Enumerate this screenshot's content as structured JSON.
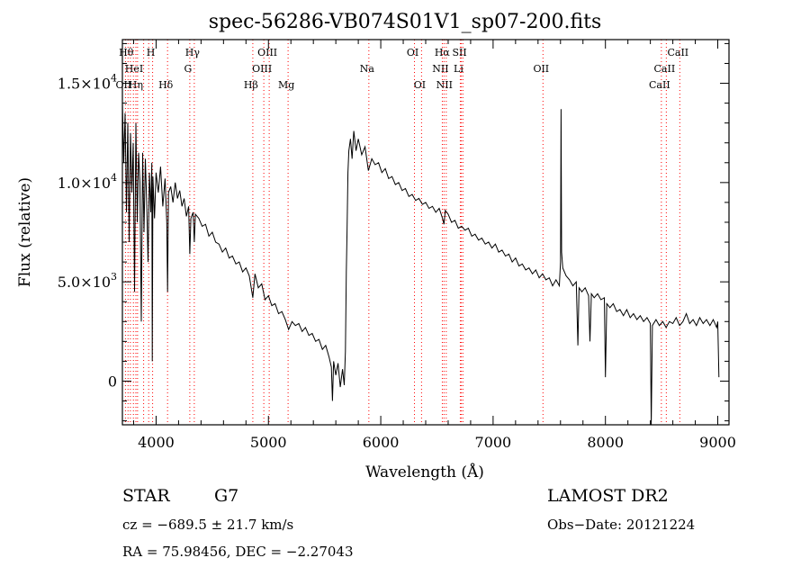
{
  "title": "spec-56286-VB074S01V1_sp07-200.fits",
  "info": {
    "object_class": "STAR",
    "subclass": "G7",
    "survey": "LAMOST DR2",
    "redshift_line": "cz = −689.5 ± 21.7 km/s",
    "obsdate_line": "Obs−Date: 20121224",
    "coords_line": "RA =  75.98456, DEC =  −2.27043"
  },
  "colors": {
    "spectrum": "#000000",
    "line_marker": "#ff0000",
    "frame": "#000000",
    "background": "#ffffff"
  },
  "chart_data": {
    "type": "line",
    "title": "spec-56286-VB074S01V1_sp07-200.fits",
    "xlabel": "Wavelength (Å)",
    "ylabel": "Flux (relative)",
    "xlim": [
      3700,
      9100
    ],
    "ylim": [
      -2200,
      17200
    ],
    "grid": false,
    "legend": "none",
    "x_ticks": [
      {
        "value": 4000,
        "label": "4000"
      },
      {
        "value": 5000,
        "label": "5000"
      },
      {
        "value": 6000,
        "label": "6000"
      },
      {
        "value": 7000,
        "label": "7000"
      },
      {
        "value": 8000,
        "label": "8000"
      },
      {
        "value": 9000,
        "label": "9000"
      }
    ],
    "y_ticks": [
      {
        "value": 0,
        "label": "0",
        "exp": ""
      },
      {
        "value": 5000,
        "label": "5.0×10",
        "exp": "3"
      },
      {
        "value": 10000,
        "label": "1.0×10",
        "exp": "4"
      },
      {
        "value": 15000,
        "label": "1.5×10",
        "exp": "4"
      }
    ],
    "series": [
      {
        "points": [
          [
            3700,
            14000
          ],
          [
            3712,
            11000
          ],
          [
            3724,
            13500
          ],
          [
            3736,
            8500
          ],
          [
            3748,
            13000
          ],
          [
            3760,
            7000
          ],
          [
            3772,
            12500
          ],
          [
            3784,
            9500
          ],
          [
            3796,
            12000
          ],
          [
            3808,
            4500
          ],
          [
            3820,
            13000
          ],
          [
            3832,
            8000
          ],
          [
            3844,
            11500
          ],
          [
            3856,
            10000
          ],
          [
            3868,
            3000
          ],
          [
            3880,
            11500
          ],
          [
            3892,
            7500
          ],
          [
            3904,
            11200
          ],
          [
            3916,
            9000
          ],
          [
            3928,
            6000
          ],
          [
            3940,
            10500
          ],
          [
            3952,
            8500
          ],
          [
            3962,
            11000
          ],
          [
            3966,
            1000
          ],
          [
            3972,
            10300
          ],
          [
            3986,
            8200
          ],
          [
            4000,
            10500
          ],
          [
            4020,
            9500
          ],
          [
            4040,
            10800
          ],
          [
            4060,
            8800
          ],
          [
            4080,
            10200
          ],
          [
            4095,
            8000
          ],
          [
            4102,
            4500
          ],
          [
            4110,
            9500
          ],
          [
            4130,
            9800
          ],
          [
            4150,
            9000
          ],
          [
            4170,
            10000
          ],
          [
            4190,
            9200
          ],
          [
            4210,
            9600
          ],
          [
            4230,
            8800
          ],
          [
            4250,
            9200
          ],
          [
            4270,
            8300
          ],
          [
            4290,
            8800
          ],
          [
            4300,
            6400
          ],
          [
            4310,
            8200
          ],
          [
            4330,
            8500
          ],
          [
            4340,
            7000
          ],
          [
            4350,
            8400
          ],
          [
            4380,
            8200
          ],
          [
            4410,
            7800
          ],
          [
            4440,
            7900
          ],
          [
            4470,
            7300
          ],
          [
            4500,
            7500
          ],
          [
            4530,
            7000
          ],
          [
            4560,
            6900
          ],
          [
            4590,
            6500
          ],
          [
            4620,
            6700
          ],
          [
            4650,
            6200
          ],
          [
            4680,
            6300
          ],
          [
            4710,
            5900
          ],
          [
            4740,
            6000
          ],
          [
            4770,
            5500
          ],
          [
            4800,
            5700
          ],
          [
            4830,
            5300
          ],
          [
            4861,
            4200
          ],
          [
            4880,
            5400
          ],
          [
            4910,
            4700
          ],
          [
            4940,
            4900
          ],
          [
            4970,
            4100
          ],
          [
            5000,
            4300
          ],
          [
            5030,
            3800
          ],
          [
            5060,
            3900
          ],
          [
            5090,
            3400
          ],
          [
            5120,
            3500
          ],
          [
            5150,
            3100
          ],
          [
            5180,
            2600
          ],
          [
            5210,
            3000
          ],
          [
            5240,
            2800
          ],
          [
            5270,
            2900
          ],
          [
            5300,
            2500
          ],
          [
            5330,
            2700
          ],
          [
            5360,
            2300
          ],
          [
            5390,
            2400
          ],
          [
            5420,
            2000
          ],
          [
            5450,
            2100
          ],
          [
            5480,
            1600
          ],
          [
            5510,
            1800
          ],
          [
            5540,
            1200
          ],
          [
            5560,
            700
          ],
          [
            5570,
            -1000
          ],
          [
            5580,
            1000
          ],
          [
            5600,
            300
          ],
          [
            5620,
            900
          ],
          [
            5640,
            -300
          ],
          [
            5660,
            600
          ],
          [
            5675,
            -200
          ],
          [
            5685,
            1500
          ],
          [
            5693,
            5500
          ],
          [
            5700,
            7500
          ],
          [
            5708,
            10500
          ],
          [
            5716,
            11600
          ],
          [
            5730,
            12200
          ],
          [
            5745,
            11200
          ],
          [
            5760,
            12600
          ],
          [
            5780,
            11600
          ],
          [
            5800,
            12200
          ],
          [
            5830,
            11400
          ],
          [
            5860,
            11800
          ],
          [
            5890,
            10600
          ],
          [
            5920,
            11200
          ],
          [
            5950,
            10900
          ],
          [
            5980,
            11000
          ],
          [
            6010,
            10500
          ],
          [
            6040,
            10700
          ],
          [
            6070,
            10200
          ],
          [
            6100,
            10300
          ],
          [
            6130,
            9900
          ],
          [
            6160,
            10000
          ],
          [
            6190,
            9600
          ],
          [
            6220,
            9700
          ],
          [
            6250,
            9300
          ],
          [
            6280,
            9400
          ],
          [
            6310,
            9100
          ],
          [
            6340,
            9200
          ],
          [
            6370,
            8900
          ],
          [
            6400,
            9000
          ],
          [
            6430,
            8700
          ],
          [
            6460,
            8800
          ],
          [
            6490,
            8500
          ],
          [
            6520,
            8700
          ],
          [
            6550,
            8200
          ],
          [
            6563,
            7900
          ],
          [
            6575,
            8600
          ],
          [
            6600,
            8400
          ],
          [
            6630,
            8000
          ],
          [
            6660,
            8100
          ],
          [
            6690,
            7700
          ],
          [
            6720,
            7800
          ],
          [
            6750,
            7600
          ],
          [
            6780,
            7700
          ],
          [
            6810,
            7300
          ],
          [
            6840,
            7400
          ],
          [
            6870,
            7100
          ],
          [
            6900,
            7200
          ],
          [
            6930,
            6900
          ],
          [
            6960,
            7000
          ],
          [
            6990,
            6700
          ],
          [
            7020,
            6900
          ],
          [
            7050,
            6500
          ],
          [
            7080,
            6600
          ],
          [
            7110,
            6300
          ],
          [
            7140,
            6400
          ],
          [
            7170,
            6000
          ],
          [
            7200,
            6200
          ],
          [
            7230,
            5800
          ],
          [
            7260,
            5900
          ],
          [
            7290,
            5600
          ],
          [
            7320,
            5700
          ],
          [
            7350,
            5400
          ],
          [
            7380,
            5600
          ],
          [
            7410,
            5200
          ],
          [
            7440,
            5400
          ],
          [
            7470,
            5100
          ],
          [
            7500,
            5200
          ],
          [
            7530,
            4800
          ],
          [
            7560,
            5100
          ],
          [
            7590,
            4800
          ],
          [
            7600,
            6000
          ],
          [
            7605,
            13700
          ],
          [
            7610,
            6500
          ],
          [
            7620,
            5700
          ],
          [
            7650,
            5300
          ],
          [
            7680,
            5100
          ],
          [
            7710,
            4800
          ],
          [
            7740,
            5000
          ],
          [
            7755,
            1800
          ],
          [
            7765,
            4700
          ],
          [
            7790,
            4500
          ],
          [
            7820,
            4700
          ],
          [
            7850,
            4300
          ],
          [
            7862,
            2000
          ],
          [
            7875,
            4400
          ],
          [
            7900,
            4200
          ],
          [
            7930,
            4400
          ],
          [
            7960,
            4100
          ],
          [
            7990,
            4200
          ],
          [
            8000,
            200
          ],
          [
            8012,
            3900
          ],
          [
            8040,
            3700
          ],
          [
            8070,
            3900
          ],
          [
            8100,
            3500
          ],
          [
            8130,
            3600
          ],
          [
            8160,
            3300
          ],
          [
            8190,
            3600
          ],
          [
            8220,
            3200
          ],
          [
            8250,
            3400
          ],
          [
            8280,
            3100
          ],
          [
            8310,
            3300
          ],
          [
            8340,
            3000
          ],
          [
            8370,
            3200
          ],
          [
            8400,
            2900
          ],
          [
            8408,
            -2200
          ],
          [
            8418,
            2800
          ],
          [
            8450,
            3100
          ],
          [
            8480,
            2800
          ],
          [
            8510,
            3000
          ],
          [
            8540,
            2700
          ],
          [
            8570,
            3000
          ],
          [
            8600,
            2900
          ],
          [
            8630,
            3200
          ],
          [
            8660,
            2800
          ],
          [
            8690,
            3000
          ],
          [
            8720,
            3400
          ],
          [
            8750,
            2900
          ],
          [
            8780,
            3100
          ],
          [
            8810,
            2800
          ],
          [
            8840,
            3200
          ],
          [
            8870,
            2900
          ],
          [
            8900,
            3100
          ],
          [
            8930,
            2800
          ],
          [
            8960,
            3100
          ],
          [
            8990,
            2700
          ],
          [
            9000,
            3000
          ],
          [
            9010,
            200
          ]
        ]
      }
    ],
    "line_markers": [
      {
        "wavelength": 3750,
        "label": "Hθ",
        "row": 0
      },
      {
        "wavelength": 3771,
        "label": "",
        "row": 0
      },
      {
        "wavelength": 3798,
        "label": "",
        "row": 0
      },
      {
        "wavelength": 3820,
        "label": "HeI",
        "row": 1
      },
      {
        "wavelength": 3835,
        "label": "Hη",
        "row": 2
      },
      {
        "wavelength": 3727,
        "label": "OII",
        "row": 2
      },
      {
        "wavelength": 3889,
        "label": "",
        "row": 0
      },
      {
        "wavelength": 3934,
        "label": "",
        "row": 0
      },
      {
        "wavelength": 3969,
        "label": "H",
        "row": 0
      },
      {
        "wavelength": 4102,
        "label": "Hδ",
        "row": 2
      },
      {
        "wavelength": 4300,
        "label": "G",
        "row": 1
      },
      {
        "wavelength": 4340,
        "label": "Hγ",
        "row": 0
      },
      {
        "wavelength": 4861,
        "label": "Hβ",
        "row": 2
      },
      {
        "wavelength": 4959,
        "label": "OIII",
        "row": 1
      },
      {
        "wavelength": 5007,
        "label": "OIII",
        "row": 0
      },
      {
        "wavelength": 5175,
        "label": "Mg",
        "row": 2
      },
      {
        "wavelength": 5894,
        "label": "Na",
        "row": 1
      },
      {
        "wavelength": 6300,
        "label": "OI",
        "row": 0
      },
      {
        "wavelength": 6363,
        "label": "OI",
        "row": 2
      },
      {
        "wavelength": 6548,
        "label": "NII",
        "row": 1
      },
      {
        "wavelength": 6563,
        "label": "Hα",
        "row": 0
      },
      {
        "wavelength": 6583,
        "label": "NII",
        "row": 2
      },
      {
        "wavelength": 6708,
        "label": "Li",
        "row": 1
      },
      {
        "wavelength": 6717,
        "label": "SII",
        "row": 0
      },
      {
        "wavelength": 6731,
        "label": "",
        "row": 0
      },
      {
        "wavelength": 7444,
        "label": "OII",
        "row": 1
      },
      {
        "wavelength": 8498,
        "label": "CaII",
        "row": 2
      },
      {
        "wavelength": 8542,
        "label": "CaII",
        "row": 1
      },
      {
        "wavelength": 8662,
        "label": "CaII",
        "row": 0
      }
    ]
  }
}
